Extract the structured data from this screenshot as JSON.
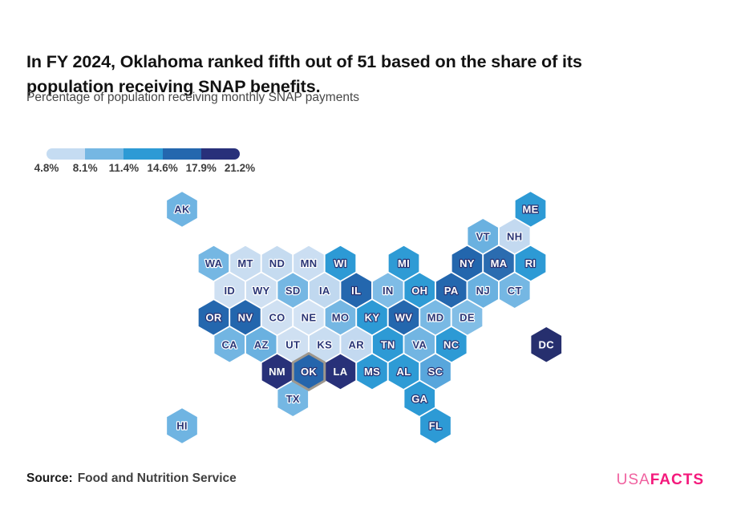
{
  "title": "In FY 2024, Oklahoma ranked fifth out of 51 based on the share of its population receiving SNAP benefits.",
  "subtitle": "Percentage of population receiving monthly SNAP payments",
  "source": {
    "label": "Source:",
    "text": "Food and Nutrition Service"
  },
  "logo": {
    "usa": "USA",
    "facts": "FACTS",
    "usa_color": "#f0619f",
    "facts_color": "#f4197c"
  },
  "legend": {
    "tick_labels": [
      "4.8%",
      "8.1%",
      "11.4%",
      "14.6%",
      "17.9%",
      "21.2%"
    ],
    "segment_colors": [
      "#c5dcf2",
      "#75b7e3",
      "#2d9ad5",
      "#2467ae",
      "#28307a"
    ]
  },
  "chart_data": {
    "type": "heatmap",
    "subtype": "hex-tile-choropleth-map",
    "metric": "Percentage of population receiving monthly SNAP payments",
    "scale_min_label": "4.8%",
    "scale_max_label": "21.2%",
    "highlight_state": "OK",
    "highlight_border_color": "#9e978d",
    "states": [
      {
        "abbr": "AK",
        "col": 0,
        "row": 0,
        "color": "#6fb4e2",
        "label": "dark"
      },
      {
        "abbr": "ME",
        "col": 22,
        "row": 0,
        "color": "#2d9ad5",
        "label": "light"
      },
      {
        "abbr": "VT",
        "col": 19,
        "row": 1,
        "color": "#6ab1e0",
        "label": "dark"
      },
      {
        "abbr": "NH",
        "col": 21,
        "row": 1,
        "color": "#c3d9f0",
        "label": "dark"
      },
      {
        "abbr": "WA",
        "col": 2,
        "row": 2,
        "color": "#75b7e3",
        "label": "dark"
      },
      {
        "abbr": "MT",
        "col": 4,
        "row": 2,
        "color": "#c9ddf1",
        "label": "dark"
      },
      {
        "abbr": "ND",
        "col": 6,
        "row": 2,
        "color": "#c5dbf0",
        "label": "dark"
      },
      {
        "abbr": "MN",
        "col": 8,
        "row": 2,
        "color": "#cbdef2",
        "label": "dark"
      },
      {
        "abbr": "WI",
        "col": 10,
        "row": 2,
        "color": "#2d9ad5",
        "label": "light"
      },
      {
        "abbr": "MI",
        "col": 14,
        "row": 2,
        "color": "#2e9bd5",
        "label": "light"
      },
      {
        "abbr": "NY",
        "col": 18,
        "row": 2,
        "color": "#2366ad",
        "label": "light"
      },
      {
        "abbr": "MA",
        "col": 20,
        "row": 2,
        "color": "#2b6cb0",
        "label": "light"
      },
      {
        "abbr": "RI",
        "col": 22,
        "row": 2,
        "color": "#2d9ad5",
        "label": "light"
      },
      {
        "abbr": "ID",
        "col": 3,
        "row": 3,
        "color": "#cfe0f2",
        "label": "dark"
      },
      {
        "abbr": "WY",
        "col": 5,
        "row": 3,
        "color": "#cfe0f2",
        "label": "dark"
      },
      {
        "abbr": "SD",
        "col": 7,
        "row": 3,
        "color": "#75b7e3",
        "label": "dark"
      },
      {
        "abbr": "IA",
        "col": 9,
        "row": 3,
        "color": "#c0d8ef",
        "label": "dark"
      },
      {
        "abbr": "IL",
        "col": 11,
        "row": 3,
        "color": "#2467ae",
        "label": "light"
      },
      {
        "abbr": "IN",
        "col": 13,
        "row": 3,
        "color": "#7fbce6",
        "label": "dark"
      },
      {
        "abbr": "OH",
        "col": 15,
        "row": 3,
        "color": "#2e9bd5",
        "label": "light"
      },
      {
        "abbr": "PA",
        "col": 17,
        "row": 3,
        "color": "#2467ae",
        "label": "light"
      },
      {
        "abbr": "NJ",
        "col": 19,
        "row": 3,
        "color": "#6ab1e0",
        "label": "dark"
      },
      {
        "abbr": "CT",
        "col": 21,
        "row": 3,
        "color": "#75b7e3",
        "label": "dark"
      },
      {
        "abbr": "OR",
        "col": 2,
        "row": 4,
        "color": "#2467ae",
        "label": "light"
      },
      {
        "abbr": "NV",
        "col": 4,
        "row": 4,
        "color": "#2366ad",
        "label": "light"
      },
      {
        "abbr": "CO",
        "col": 6,
        "row": 4,
        "color": "#cfe0f2",
        "label": "dark"
      },
      {
        "abbr": "NE",
        "col": 8,
        "row": 4,
        "color": "#d3e3f4",
        "label": "dark"
      },
      {
        "abbr": "MO",
        "col": 10,
        "row": 4,
        "color": "#75b7e3",
        "label": "dark"
      },
      {
        "abbr": "KY",
        "col": 12,
        "row": 4,
        "color": "#2d9ad5",
        "label": "light"
      },
      {
        "abbr": "WV",
        "col": 14,
        "row": 4,
        "color": "#2467ae",
        "label": "light"
      },
      {
        "abbr": "MD",
        "col": 16,
        "row": 4,
        "color": "#79b9e4",
        "label": "dark"
      },
      {
        "abbr": "DE",
        "col": 18,
        "row": 4,
        "color": "#82bee6",
        "label": "dark"
      },
      {
        "abbr": "CA",
        "col": 3,
        "row": 5,
        "color": "#72b5e2",
        "label": "dark"
      },
      {
        "abbr": "AZ",
        "col": 5,
        "row": 5,
        "color": "#6ab1e0",
        "label": "dark"
      },
      {
        "abbr": "UT",
        "col": 7,
        "row": 5,
        "color": "#cfe0f2",
        "label": "dark"
      },
      {
        "abbr": "KS",
        "col": 9,
        "row": 5,
        "color": "#c9ddf1",
        "label": "dark"
      },
      {
        "abbr": "AR",
        "col": 11,
        "row": 5,
        "color": "#c3d9f0",
        "label": "dark"
      },
      {
        "abbr": "TN",
        "col": 13,
        "row": 5,
        "color": "#2d9ad5",
        "label": "light"
      },
      {
        "abbr": "VA",
        "col": 15,
        "row": 5,
        "color": "#72b5e2",
        "label": "dark"
      },
      {
        "abbr": "NC",
        "col": 17,
        "row": 5,
        "color": "#2d9ad5",
        "label": "light"
      },
      {
        "abbr": "DC",
        "col": 23,
        "row": 5,
        "color": "#262f6e",
        "label": "light"
      },
      {
        "abbr": "NM",
        "col": 6,
        "row": 6,
        "color": "#283179",
        "label": "light"
      },
      {
        "abbr": "OK",
        "col": 8,
        "row": 6,
        "color": "#2565ac",
        "label": "light"
      },
      {
        "abbr": "LA",
        "col": 10,
        "row": 6,
        "color": "#283179",
        "label": "light"
      },
      {
        "abbr": "MS",
        "col": 12,
        "row": 6,
        "color": "#2d9ad5",
        "label": "light"
      },
      {
        "abbr": "AL",
        "col": 14,
        "row": 6,
        "color": "#2e9bd5",
        "label": "light"
      },
      {
        "abbr": "SC",
        "col": 16,
        "row": 6,
        "color": "#58a6dc",
        "label": "light"
      },
      {
        "abbr": "TX",
        "col": 7,
        "row": 7,
        "color": "#75b7e3",
        "label": "dark"
      },
      {
        "abbr": "GA",
        "col": 15,
        "row": 7,
        "color": "#2d9ad5",
        "label": "light"
      },
      {
        "abbr": "HI",
        "col": 0,
        "row": 8,
        "color": "#6fb4e2",
        "label": "dark"
      },
      {
        "abbr": "FL",
        "col": 16,
        "row": 8,
        "color": "#2d9ad5",
        "label": "light"
      }
    ]
  }
}
